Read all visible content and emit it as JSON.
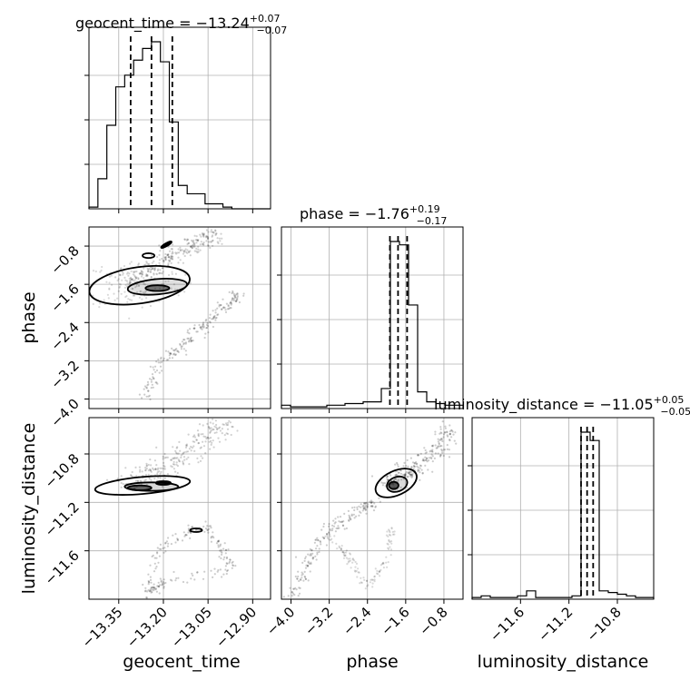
{
  "chart_data": {
    "type": "corner",
    "grid": true,
    "parameters": [
      {
        "name": "geocent_time",
        "range": [
          -13.45,
          -12.84
        ],
        "ticks": [
          -13.35,
          -13.2,
          -13.05,
          -12.9
        ],
        "tick_labels": [
          "−13.35",
          "−13.20",
          "−13.05",
          "−12.90"
        ],
        "quantiles": [
          -13.31,
          -13.24,
          -13.17
        ],
        "title": {
          "main": "geocent_time = −13.24",
          "sup": "+0.07",
          "sub": "−0.07"
        },
        "hist_edges": [
          -13.45,
          -13.42,
          -13.39,
          -13.36,
          -13.33,
          -13.3,
          -13.27,
          -13.24,
          -13.21,
          -13.18,
          -13.15,
          -13.12,
          -13.09,
          -13.06,
          -13.03,
          -13.0,
          -12.97,
          -12.94,
          -12.91,
          -12.88,
          -12.84
        ],
        "hist_counts": [
          0.01,
          0.18,
          0.5,
          0.73,
          0.8,
          0.89,
          0.96,
          1.0,
          0.88,
          0.52,
          0.14,
          0.09,
          0.09,
          0.03,
          0.03,
          0.01,
          0,
          0,
          0,
          0
        ]
      },
      {
        "name": "phase",
        "range": [
          -4.2,
          -0.4
        ],
        "ticks": [
          -4.0,
          -3.2,
          -2.4,
          -1.6,
          -0.8
        ],
        "tick_labels": [
          "−4.0",
          "−3.2",
          "−2.4",
          "−1.6",
          "−0.8"
        ],
        "quantiles": [
          -1.93,
          -1.76,
          -1.57
        ],
        "title": {
          "main": "phase = −1.76",
          "sup": "+0.19",
          "sub": "−0.17"
        },
        "hist_edges": [
          -4.2,
          -4.01,
          -3.82,
          -3.63,
          -3.44,
          -3.25,
          -3.06,
          -2.87,
          -2.68,
          -2.49,
          -2.3,
          -2.11,
          -1.92,
          -1.73,
          -1.54,
          -1.35,
          -1.16,
          -0.97,
          -0.78,
          -0.59,
          -0.4
        ],
        "hist_counts": [
          0.02,
          0.01,
          0.01,
          0.01,
          0.01,
          0.02,
          0.02,
          0.03,
          0.03,
          0.04,
          0.04,
          0.12,
          1.0,
          0.98,
          0.62,
          0.1,
          0.04,
          0.03,
          0.02,
          0.02
        ]
      },
      {
        "name": "luminosity_distance",
        "range": [
          -12.0,
          -10.5
        ],
        "ticks": [
          -11.6,
          -11.2,
          -10.8
        ],
        "tick_labels": [
          "−11.6",
          "−11.2",
          "−10.8"
        ],
        "quantiles": [
          -11.1,
          -11.05,
          -11.0
        ],
        "title": {
          "main": "luminosity_distance = −11.05",
          "sup": "+0.05",
          "sub": "−0.05"
        },
        "hist_edges": [
          -12.0,
          -11.925,
          -11.85,
          -11.775,
          -11.7,
          -11.625,
          -11.55,
          -11.475,
          -11.4,
          -11.325,
          -11.25,
          -11.175,
          -11.1,
          -11.025,
          -10.95,
          -10.875,
          -10.8,
          -10.725,
          -10.65,
          -10.575,
          -10.5
        ],
        "hist_counts": [
          0.01,
          0.02,
          0.01,
          0.01,
          0.01,
          0.02,
          0.05,
          0.01,
          0.01,
          0.01,
          0.01,
          0.02,
          1.0,
          0.95,
          0.05,
          0.04,
          0.03,
          0.02,
          0.01,
          0.01
        ]
      }
    ],
    "y_tick_labels": {
      "phase": [
        "−0.8",
        "−1.6",
        "−2.4",
        "−3.2",
        "−4.0"
      ],
      "luminosity_distance": [
        "−10.8",
        "−11.2",
        "−11.6"
      ]
    },
    "axis_labels": {
      "x": [
        "geocent_time",
        "phase",
        "luminosity_distance"
      ],
      "y": [
        "phase",
        "luminosity_distance"
      ]
    }
  }
}
